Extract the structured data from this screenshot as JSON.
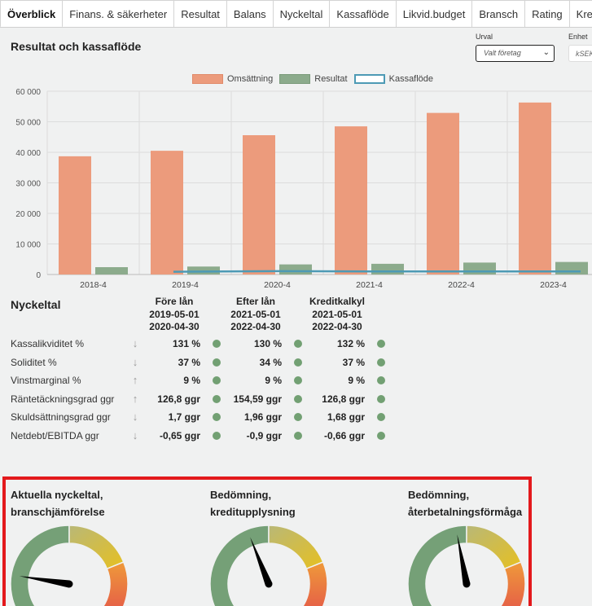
{
  "tabs": [
    "Överblick",
    "Finans. & säkerheter",
    "Resultat",
    "Balans",
    "Nyckeltal",
    "Kassaflöde",
    "Likvid.budget",
    "Bransch",
    "Rating",
    "Kreditupplysning"
  ],
  "active_tab": 0,
  "card": {
    "title": "Resultat och kassaflöde",
    "urval_label": "Urval",
    "urval_value": "Valt företag",
    "enhet_label": "Enhet",
    "enhet_value": "kSEK"
  },
  "legend": {
    "omsattning": "Omsättning",
    "resultat": "Resultat",
    "kassaflode": "Kassaflöde"
  },
  "colors": {
    "omsattning": "#ec9b7c",
    "resultat": "#8cab8c",
    "kassaflode": "#4d9ab5",
    "ok_dot": "#72a073",
    "highlight_border": "#e3191c"
  },
  "chart_data": {
    "type": "bar",
    "categories": [
      "2018-4",
      "2019-4",
      "2020-4",
      "2021-4",
      "2022-4",
      "2023-4"
    ],
    "series": [
      {
        "name": "Omsättning",
        "type": "bar",
        "values": [
          38700,
          40500,
          45600,
          48500,
          52900,
          56300
        ]
      },
      {
        "name": "Resultat",
        "type": "bar",
        "values": [
          2400,
          2600,
          3300,
          3500,
          3900,
          4100
        ]
      },
      {
        "name": "Kassaflöde",
        "type": "line",
        "values": [
          null,
          900,
          1100,
          1000,
          1000,
          1000
        ]
      }
    ],
    "yticks": [
      "60 000",
      "50 000",
      "40 000",
      "30 000",
      "20 000",
      "10 000",
      "0"
    ],
    "ylim": [
      0,
      60000
    ],
    "grid": true,
    "legend_position": "top"
  },
  "nyckeltal": {
    "title": "Nyckeltal",
    "columns": [
      {
        "l1": "Före lån",
        "l2": "2019-05-01",
        "l3": "2020-04-30"
      },
      {
        "l1": "Efter lån",
        "l2": "2021-05-01",
        "l3": "2022-04-30"
      },
      {
        "l1": "Kreditkalkyl",
        "l2": "2021-05-01",
        "l3": "2022-04-30"
      }
    ],
    "rows": [
      {
        "label": "Kassalikviditet %",
        "trend": "down",
        "values": [
          "131 %",
          "130 %",
          "132 %"
        ]
      },
      {
        "label": "Soliditet %",
        "trend": "down",
        "values": [
          "37 %",
          "34 %",
          "37 %"
        ]
      },
      {
        "label": "Vinstmarginal %",
        "trend": "up",
        "values": [
          "9 %",
          "9 %",
          "9 %"
        ]
      },
      {
        "label": "Räntetäckningsgrad ggr",
        "trend": "up",
        "values": [
          "126,8 ggr",
          "154,59 ggr",
          "126,8 ggr"
        ]
      },
      {
        "label": "Skuldsättningsgrad ggr",
        "trend": "down",
        "values": [
          "1,7 ggr",
          "1,96 ggr",
          "1,68 ggr"
        ]
      },
      {
        "label": "Netdebt/EBITDA ggr",
        "trend": "down",
        "values": [
          "-0,65 ggr",
          "-0,9 ggr",
          "-0,66 ggr"
        ]
      }
    ]
  },
  "gauges": [
    {
      "title1": "Aktuella nyckeltal,",
      "title2": "branschjämförelse",
      "needle_fraction": 0.2
    },
    {
      "title1": "Bedömning,",
      "title2": "kreditupplysning",
      "needle_fraction": 0.42
    },
    {
      "title1": "Bedömning,",
      "title2": "återbetalningsförmåga",
      "needle_fraction": 0.46
    }
  ]
}
